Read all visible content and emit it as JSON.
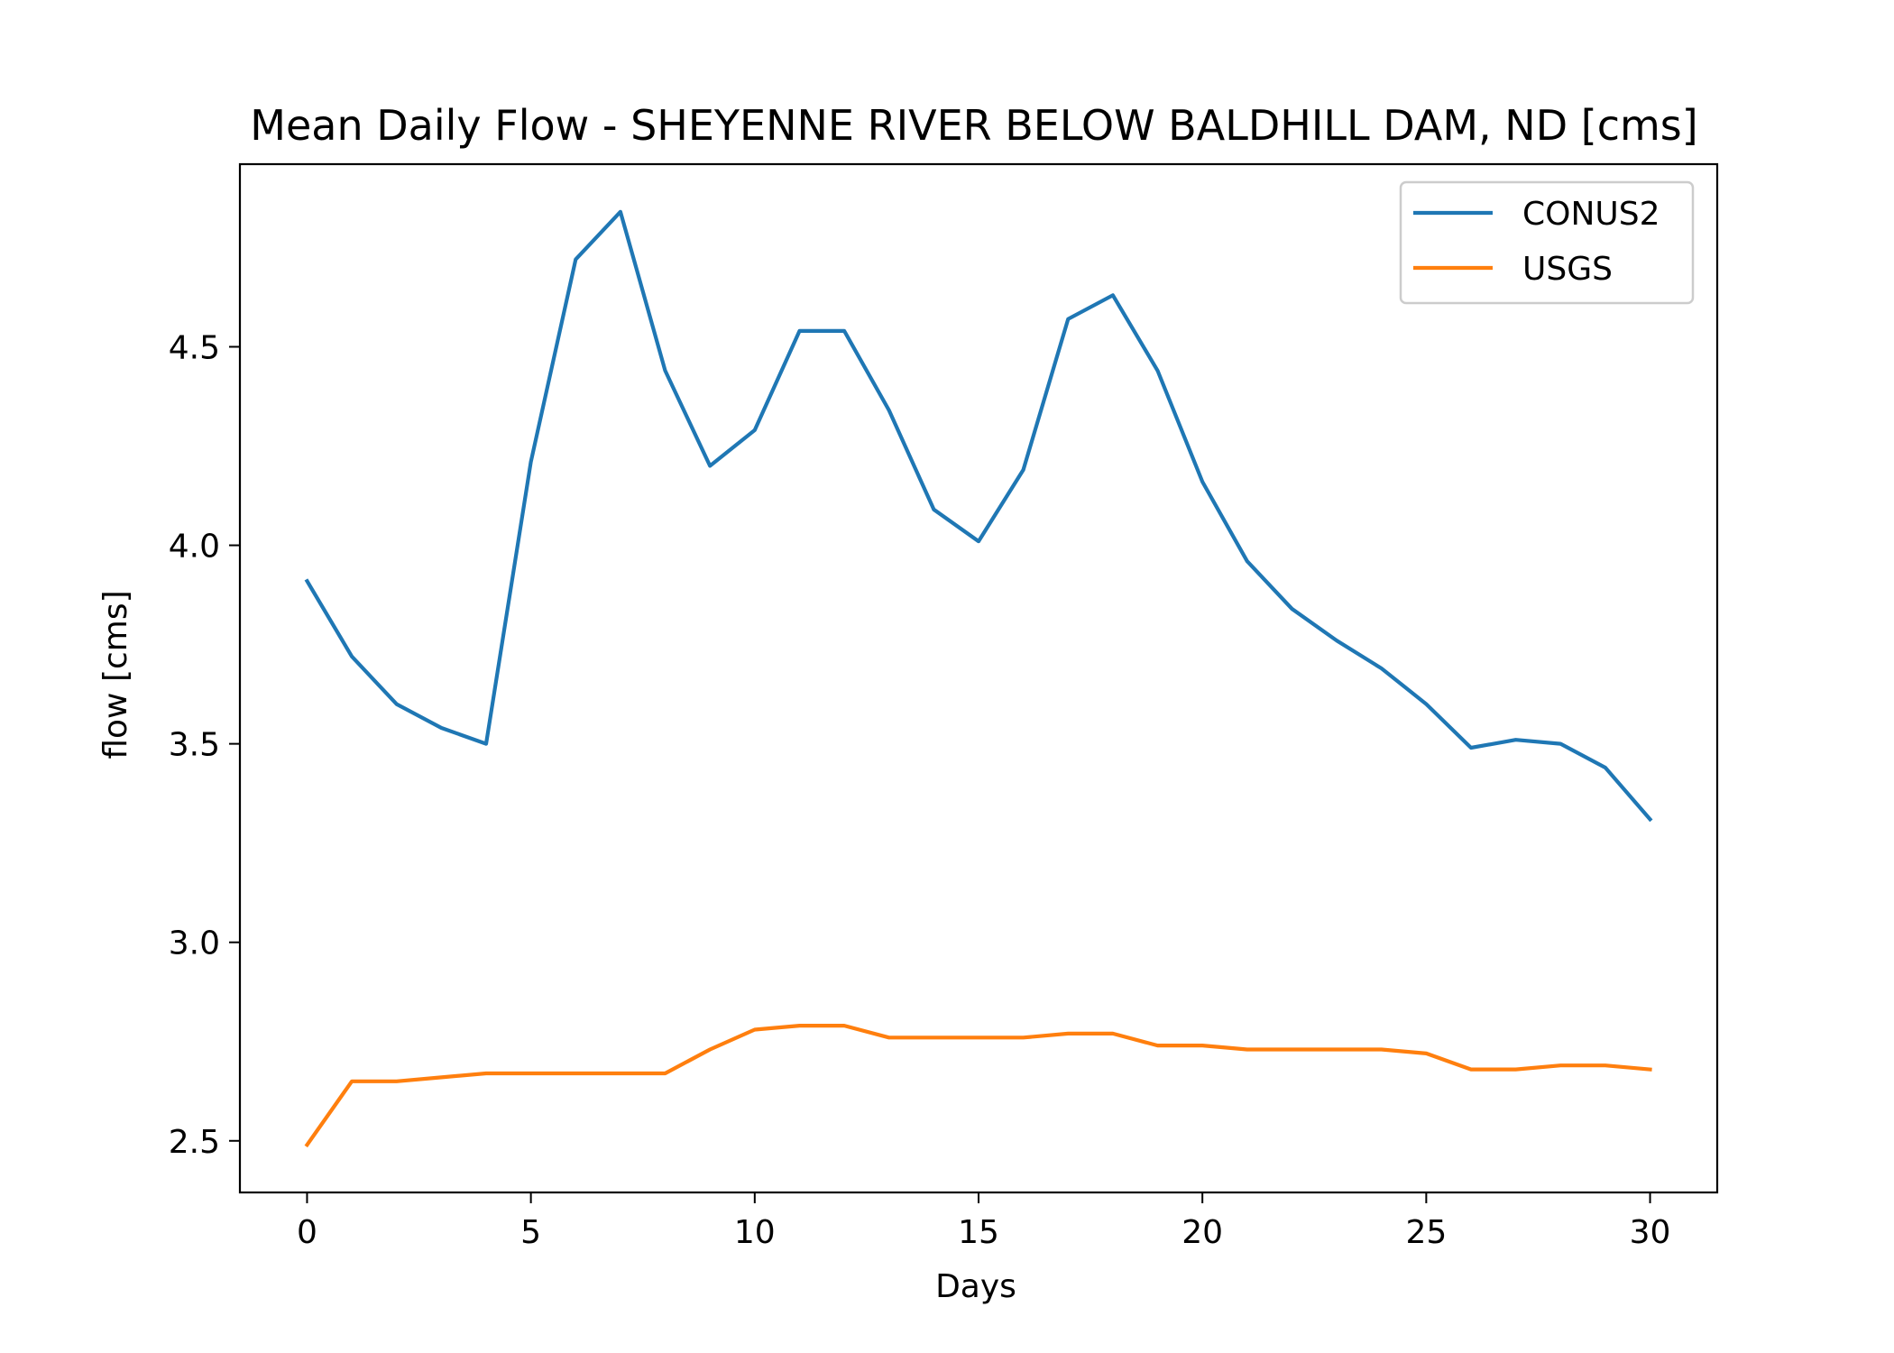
{
  "chart_data": {
    "type": "line",
    "title": "Mean Daily Flow - SHEYENNE RIVER BELOW BALDHILL DAM, ND [cms]",
    "xlabel": "Days",
    "ylabel": "flow [cms]",
    "xlim": [
      -1.5,
      31.5
    ],
    "ylim": [
      2.37,
      4.96
    ],
    "xticks": [
      0,
      5,
      10,
      15,
      20,
      25,
      30
    ],
    "yticks": [
      2.5,
      3.0,
      3.5,
      4.0,
      4.5
    ],
    "ytick_labels": [
      "2.5",
      "3.0",
      "3.5",
      "4.0",
      "4.5"
    ],
    "grid": false,
    "legend_position": "top-right",
    "x": [
      0,
      1,
      2,
      3,
      4,
      5,
      6,
      7,
      8,
      9,
      10,
      11,
      12,
      13,
      14,
      15,
      16,
      17,
      18,
      19,
      20,
      21,
      22,
      23,
      24,
      25,
      26,
      27,
      28,
      29,
      30
    ],
    "series": [
      {
        "name": "CONUS2",
        "color": "#1f77b4",
        "values": [
          3.91,
          3.72,
          3.6,
          3.54,
          3.5,
          4.21,
          4.72,
          4.84,
          4.44,
          4.2,
          4.29,
          4.54,
          4.54,
          4.34,
          4.09,
          4.01,
          4.19,
          4.57,
          4.63,
          4.44,
          4.16,
          3.96,
          3.84,
          3.76,
          3.69,
          3.6,
          3.49,
          3.51,
          3.5,
          3.44,
          3.31
        ]
      },
      {
        "name": "USGS",
        "color": "#ff7f0e",
        "values": [
          2.49,
          2.65,
          2.65,
          2.66,
          2.67,
          2.67,
          2.67,
          2.67,
          2.67,
          2.73,
          2.78,
          2.79,
          2.79,
          2.76,
          2.76,
          2.76,
          2.76,
          2.77,
          2.77,
          2.74,
          2.74,
          2.73,
          2.73,
          2.73,
          2.73,
          2.72,
          2.68,
          2.68,
          2.69,
          2.69,
          2.68
        ]
      }
    ]
  }
}
